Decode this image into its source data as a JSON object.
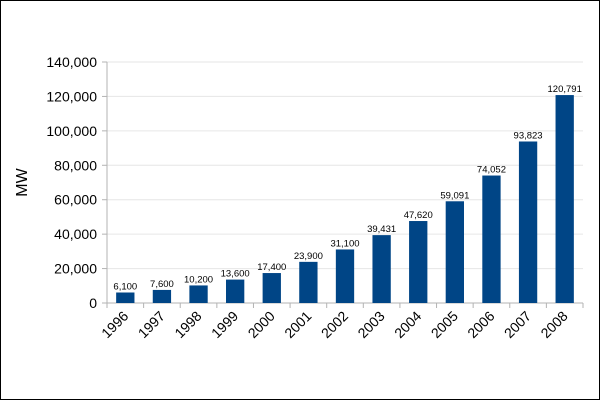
{
  "chart_data": {
    "type": "bar",
    "title": "",
    "xlabel": "",
    "ylabel": "MW",
    "categories": [
      "1996",
      "1997",
      "1998",
      "1999",
      "2000",
      "2001",
      "2002",
      "2003",
      "2004",
      "2005",
      "2006",
      "2007",
      "2008"
    ],
    "values": [
      6100,
      7600,
      10200,
      13600,
      17400,
      23900,
      31100,
      39431,
      47620,
      59091,
      74052,
      93823,
      120791
    ],
    "value_labels": [
      "6,100",
      "7,600",
      "10,200",
      "13,600",
      "17,400",
      "23,900",
      "31,100",
      "39,431",
      "47,620",
      "59,091",
      "74,052",
      "93,823",
      "120,791"
    ],
    "ylim": [
      0,
      140000
    ],
    "yticks": [
      0,
      20000,
      40000,
      60000,
      80000,
      100000,
      120000,
      140000
    ],
    "ytick_labels": [
      "0",
      "20,000",
      "40,000",
      "60,000",
      "80,000",
      "100,000",
      "120,000",
      "140,000"
    ],
    "grid": true,
    "legend": "none",
    "colors": {
      "bar": "#004586",
      "grid": "#e6e6e6",
      "axis": "#b3b3b3"
    }
  }
}
